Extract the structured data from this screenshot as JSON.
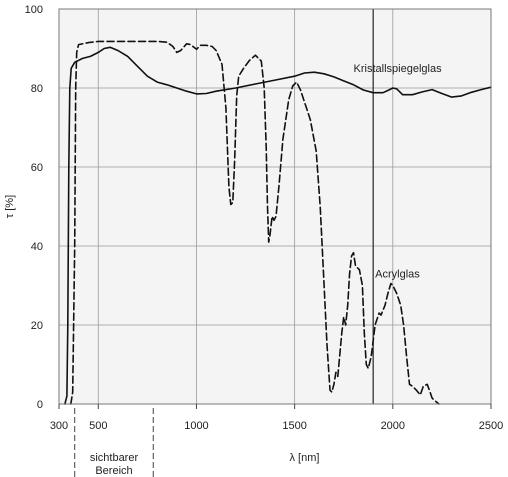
{
  "chart_data": {
    "type": "line",
    "xlabel": "λ [nm]",
    "ylabel": "τ [%]",
    "xlim": [
      300,
      2500
    ],
    "ylim": [
      0,
      100
    ],
    "x_ticks": [
      300,
      500,
      1000,
      1500,
      2000,
      2500
    ],
    "y_ticks": [
      0,
      20,
      40,
      60,
      80,
      100
    ],
    "grid": true,
    "plot_background": "#f4f4f4",
    "grid_color": "#9a9a9a",
    "line_color": "#111111",
    "region": {
      "label_line1": "sichtbarer",
      "label_line2": "Bereich",
      "from": 380,
      "to": 780
    },
    "marker_line_x": 1900,
    "series": [
      {
        "name": "Kristallspiegelglas",
        "style": "solid",
        "label_at": [
          1800,
          84
        ],
        "points": [
          [
            330,
            0
          ],
          [
            340,
            2
          ],
          [
            345,
            20
          ],
          [
            350,
            60
          ],
          [
            355,
            80
          ],
          [
            362,
            85
          ],
          [
            380,
            86.5
          ],
          [
            420,
            87.5
          ],
          [
            460,
            88
          ],
          [
            500,
            89
          ],
          [
            530,
            90
          ],
          [
            560,
            90.3
          ],
          [
            600,
            89.5
          ],
          [
            650,
            88
          ],
          [
            700,
            85.5
          ],
          [
            750,
            83
          ],
          [
            800,
            81.5
          ],
          [
            850,
            80.8
          ],
          [
            900,
            80
          ],
          [
            950,
            79.2
          ],
          [
            1000,
            78.5
          ],
          [
            1050,
            78.6
          ],
          [
            1100,
            79.2
          ],
          [
            1200,
            80
          ],
          [
            1300,
            81
          ],
          [
            1400,
            82
          ],
          [
            1500,
            83
          ],
          [
            1550,
            83.8
          ],
          [
            1600,
            84
          ],
          [
            1650,
            83.6
          ],
          [
            1700,
            82.8
          ],
          [
            1750,
            81.8
          ],
          [
            1800,
            80.8
          ],
          [
            1850,
            79.5
          ],
          [
            1900,
            78.8
          ],
          [
            1950,
            78.8
          ],
          [
            1980,
            79.5
          ],
          [
            2000,
            80
          ],
          [
            2020,
            79.8
          ],
          [
            2050,
            78.3
          ],
          [
            2100,
            78.3
          ],
          [
            2150,
            79
          ],
          [
            2200,
            79.6
          ],
          [
            2250,
            78.6
          ],
          [
            2300,
            77.7
          ],
          [
            2350,
            78
          ],
          [
            2400,
            78.9
          ],
          [
            2450,
            79.6
          ],
          [
            2500,
            80.2
          ]
        ]
      },
      {
        "name": "Acrylglas",
        "style": "dashed",
        "label_at": [
          1910,
          32
        ],
        "points": [
          [
            360,
            0
          ],
          [
            370,
            3
          ],
          [
            380,
            40
          ],
          [
            385,
            80
          ],
          [
            390,
            89
          ],
          [
            400,
            91
          ],
          [
            450,
            91.5
          ],
          [
            500,
            91.8
          ],
          [
            600,
            91.8
          ],
          [
            700,
            91.8
          ],
          [
            800,
            91.8
          ],
          [
            850,
            91.6
          ],
          [
            880,
            90.5
          ],
          [
            900,
            89
          ],
          [
            920,
            89.5
          ],
          [
            950,
            91.2
          ],
          [
            970,
            91
          ],
          [
            1000,
            89.8
          ],
          [
            1020,
            90.8
          ],
          [
            1050,
            90.8
          ],
          [
            1080,
            90.5
          ],
          [
            1100,
            89.5
          ],
          [
            1130,
            86
          ],
          [
            1150,
            75
          ],
          [
            1165,
            55
          ],
          [
            1175,
            50.5
          ],
          [
            1185,
            51
          ],
          [
            1195,
            62
          ],
          [
            1205,
            78
          ],
          [
            1215,
            83
          ],
          [
            1240,
            85
          ],
          [
            1270,
            87
          ],
          [
            1300,
            88.3
          ],
          [
            1330,
            86.8
          ],
          [
            1345,
            80
          ],
          [
            1355,
            65
          ],
          [
            1362,
            50
          ],
          [
            1368,
            41
          ],
          [
            1375,
            43
          ],
          [
            1385,
            47.5
          ],
          [
            1395,
            46.5
          ],
          [
            1405,
            47.5
          ],
          [
            1420,
            55
          ],
          [
            1440,
            67
          ],
          [
            1470,
            77
          ],
          [
            1490,
            80.5
          ],
          [
            1510,
            81.5
          ],
          [
            1530,
            79.5
          ],
          [
            1560,
            75
          ],
          [
            1580,
            72
          ],
          [
            1610,
            64
          ],
          [
            1630,
            50
          ],
          [
            1650,
            30
          ],
          [
            1665,
            15
          ],
          [
            1680,
            3.5
          ],
          [
            1690,
            3
          ],
          [
            1700,
            5
          ],
          [
            1710,
            8
          ],
          [
            1720,
            7
          ],
          [
            1740,
            18
          ],
          [
            1750,
            22
          ],
          [
            1760,
            20
          ],
          [
            1770,
            25
          ],
          [
            1780,
            33
          ],
          [
            1790,
            37.5
          ],
          [
            1800,
            38.3
          ],
          [
            1810,
            35
          ],
          [
            1830,
            34
          ],
          [
            1845,
            30
          ],
          [
            1855,
            18
          ],
          [
            1865,
            10
          ],
          [
            1875,
            9
          ],
          [
            1890,
            12
          ],
          [
            1910,
            20
          ],
          [
            1930,
            23
          ],
          [
            1940,
            22.5
          ],
          [
            1960,
            25
          ],
          [
            1975,
            28
          ],
          [
            1990,
            30.5
          ],
          [
            2000,
            30
          ],
          [
            2020,
            28
          ],
          [
            2040,
            25
          ],
          [
            2055,
            20
          ],
          [
            2070,
            12
          ],
          [
            2085,
            5
          ],
          [
            2100,
            4.5
          ],
          [
            2120,
            3.5
          ],
          [
            2140,
            2.3
          ],
          [
            2155,
            4.5
          ],
          [
            2175,
            5
          ],
          [
            2190,
            3
          ],
          [
            2200,
            1.5
          ],
          [
            2215,
            0.8
          ],
          [
            2235,
            0
          ]
        ]
      }
    ]
  }
}
